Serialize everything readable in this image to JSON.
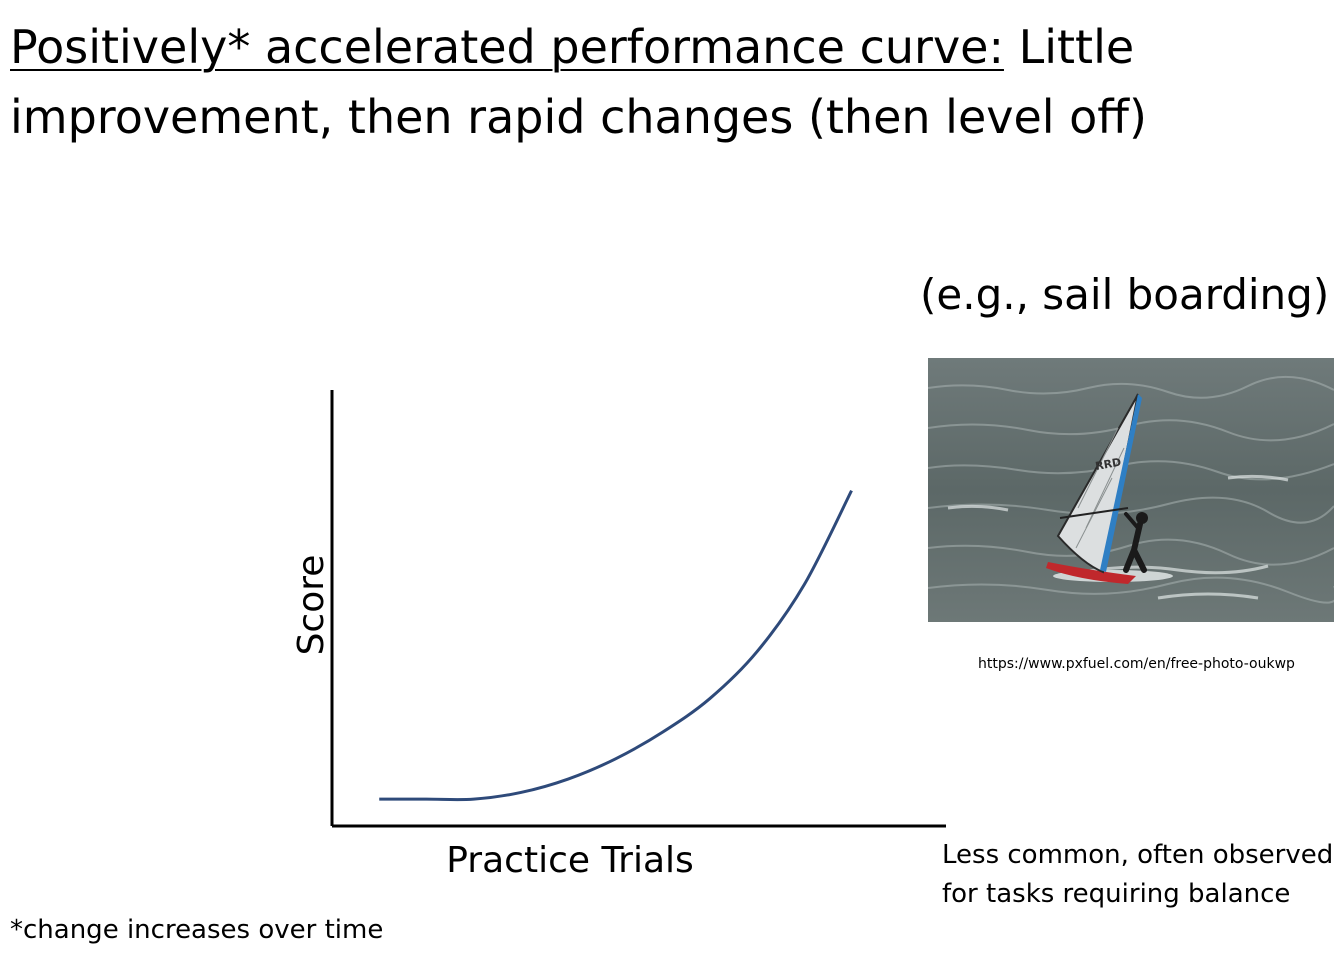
{
  "title": {
    "underlined": "Positively* accelerated performance curve:",
    "rest": " Little improvement, then rapid changes (then level off)"
  },
  "example_label": "(e.g., sail boarding)",
  "photo": {
    "subject": "windsurfer on choppy water",
    "sail_logo": "RRD",
    "credit": "https://www.pxfuel.com/en/free-photo-oukwp"
  },
  "chart_data": {
    "type": "line",
    "xlabel": "Practice Trials",
    "ylabel": "Score",
    "x": [
      0,
      1,
      2,
      3,
      4,
      5,
      6,
      7,
      8,
      9,
      10
    ],
    "series": [
      {
        "values": [
          0.08,
          0.08,
          0.08,
          0.1,
          0.14,
          0.2,
          0.28,
          0.38,
          0.52,
          0.72,
          1.0
        ]
      }
    ],
    "xlim": [
      -1,
      12
    ],
    "ylim": [
      0,
      1.3
    ],
    "grid": false,
    "line_color": "#2e4a7a"
  },
  "note": "Less common, often observed for tasks requiring balance",
  "footnote": "*change increases over time"
}
